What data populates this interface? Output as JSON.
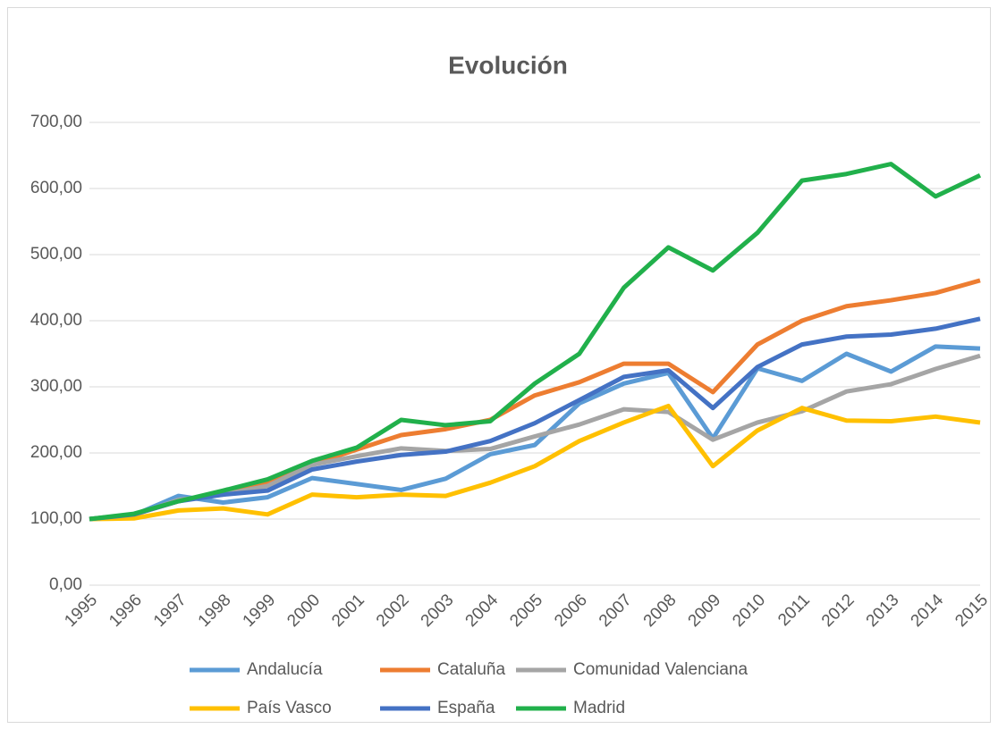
{
  "chart_data": {
    "type": "line",
    "title": "Evolución",
    "categories": [
      "1995",
      "1996",
      "1997",
      "1998",
      "1999",
      "2000",
      "2001",
      "2002",
      "2003",
      "2004",
      "2005",
      "2006",
      "2007",
      "2008",
      "2009",
      "2010",
      "2011",
      "2012",
      "2013",
      "2014",
      "2015"
    ],
    "series": [
      {
        "name": "Andalucía",
        "color": "#5b9bd5",
        "values": [
          100,
          106,
          135,
          125,
          133,
          162,
          153,
          144,
          161,
          198,
          212,
          275,
          305,
          321,
          222,
          328,
          309,
          350,
          323,
          361,
          358
        ]
      },
      {
        "name": "Cataluña",
        "color": "#ed7d31",
        "values": [
          100,
          107,
          127,
          140,
          155,
          183,
          205,
          227,
          236,
          250,
          287,
          307,
          335,
          335,
          292,
          364,
          400,
          422,
          431,
          442,
          461
        ]
      },
      {
        "name": "Comunidad Valenciana",
        "color": "#a5a5a5",
        "values": [
          100,
          106,
          129,
          137,
          150,
          182,
          195,
          207,
          203,
          206,
          225,
          243,
          266,
          262,
          220,
          246,
          263,
          293,
          304,
          327,
          347
        ]
      },
      {
        "name": "País Vasco",
        "color": "#ffc000",
        "values": [
          100,
          101,
          113,
          116,
          107,
          137,
          133,
          137,
          135,
          155,
          180,
          218,
          246,
          271,
          180,
          234,
          268,
          249,
          248,
          255,
          246
        ]
      },
      {
        "name": "España",
        "color": "#4472c4",
        "values": [
          100,
          107,
          127,
          137,
          143,
          175,
          187,
          197,
          202,
          218,
          245,
          280,
          315,
          325,
          268,
          330,
          364,
          376,
          379,
          388,
          403
        ]
      },
      {
        "name": "Madrid",
        "color": "#21b04b",
        "values": [
          100,
          108,
          127,
          143,
          160,
          188,
          208,
          250,
          242,
          248,
          305,
          350,
          450,
          511,
          476,
          533,
          612,
          622,
          637,
          588,
          620
        ]
      }
    ],
    "ylim": [
      0,
      700
    ],
    "yticks": [
      {
        "value": 0,
        "label": "0,00"
      },
      {
        "value": 100,
        "label": "100,00"
      },
      {
        "value": 200,
        "label": "200,00"
      },
      {
        "value": 300,
        "label": "300,00"
      },
      {
        "value": 400,
        "label": "400,00"
      },
      {
        "value": 500,
        "label": "500,00"
      },
      {
        "value": 600,
        "label": "600,00"
      },
      {
        "value": 700,
        "label": "700,00"
      }
    ],
    "grid": true,
    "legend": "bottom"
  }
}
